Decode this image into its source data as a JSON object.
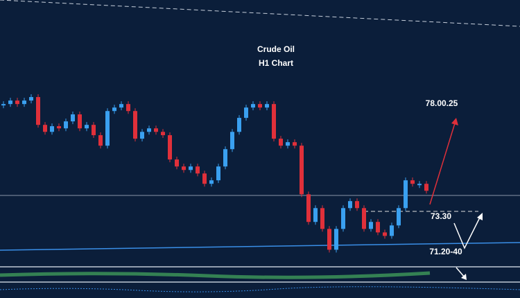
{
  "chart_data": {
    "type": "candlestick",
    "title": "Crude Oil",
    "subtitle": "H1  Chart",
    "annotations": [
      {
        "text": "78.00.25",
        "color": "#ffffff"
      },
      {
        "text": "73.30",
        "color": "#ffffff"
      },
      {
        "text": "71.20-40",
        "color": "#4aa3ff"
      }
    ],
    "values": [
      80.05,
      80.26,
      80.05,
      80.26,
      80.47,
      78.8,
      78.38,
      78.72,
      78.59,
      79.01,
      79.43,
      78.59,
      78.8,
      78.18,
      77.55,
      79.63,
      79.84,
      80.05,
      79.63,
      77.97,
      78.38,
      78.59,
      78.38,
      78.18,
      76.72,
      76.3,
      76.09,
      76.3,
      75.88,
      75.26,
      75.47,
      76.3,
      77.34,
      78.38,
      79.22,
      79.84,
      80.05,
      79.84,
      80.05,
      77.97,
      77.55,
      77.76,
      77.55,
      74.63,
      72.97,
      73.8,
      72.55,
      71.3,
      72.55,
      73.8,
      74.22,
      73.8,
      72.55,
      72.97,
      72.34,
      72.13,
      72.76,
      73.8,
      75.47,
      75.26,
      75.26,
      74.84
    ],
    "ylim": [
      68.4,
      86.3
    ],
    "up_color": "#3aa0f0",
    "down_color": "#e0303a"
  }
}
